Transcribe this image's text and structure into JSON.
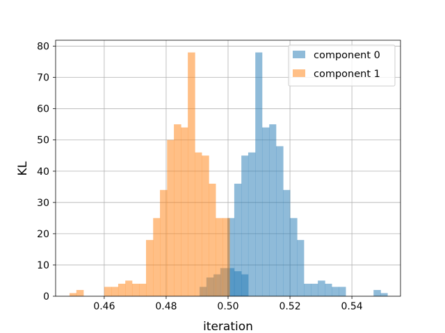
{
  "chart_data": {
    "type": "bar",
    "title": "",
    "xlabel": "iteration",
    "ylabel": "KL",
    "xlim": [
      0.4443,
      0.5557
    ],
    "ylim": [
      0,
      81.9
    ],
    "grid": true,
    "legend_position": "top-right",
    "x_ticks": [
      "0.46",
      "0.48",
      "0.50",
      "0.52",
      "0.54"
    ],
    "x_tick_values": [
      0.46,
      0.48,
      0.5,
      0.52,
      0.54
    ],
    "y_ticks": [
      "0",
      "10",
      "20",
      "30",
      "40",
      "50",
      "60",
      "70",
      "80"
    ],
    "y_tick_values": [
      0,
      10,
      20,
      30,
      40,
      50,
      60,
      70,
      80
    ],
    "series": [
      {
        "name": "component 0",
        "color": "#1f77b4",
        "opacity": 0.5,
        "bins": [
          [
            0.4908,
            0.493,
            3
          ],
          [
            0.493,
            0.4953,
            6
          ],
          [
            0.4953,
            0.4975,
            7
          ],
          [
            0.4975,
            0.4998,
            9
          ],
          [
            0.4998,
            0.502,
            9
          ],
          [
            0.502,
            0.5043,
            8
          ],
          [
            0.5043,
            0.5065,
            7
          ],
          [
            0.4998,
            0.502,
            25
          ],
          [
            0.502,
            0.5043,
            36
          ],
          [
            0.5043,
            0.5065,
            45
          ],
          [
            0.5065,
            0.5088,
            46
          ],
          [
            0.5088,
            0.511,
            78
          ],
          [
            0.511,
            0.5133,
            54
          ],
          [
            0.5133,
            0.5155,
            55
          ],
          [
            0.5155,
            0.5178,
            48
          ],
          [
            0.5178,
            0.52,
            34
          ],
          [
            0.52,
            0.5223,
            25
          ],
          [
            0.5223,
            0.5245,
            18
          ],
          [
            0.5245,
            0.5268,
            4
          ],
          [
            0.5268,
            0.529,
            4
          ],
          [
            0.529,
            0.5313,
            5
          ],
          [
            0.5313,
            0.5335,
            4
          ],
          [
            0.5335,
            0.5358,
            3
          ],
          [
            0.5358,
            0.538,
            3
          ],
          [
            0.547,
            0.5493,
            2
          ],
          [
            0.5493,
            0.5515,
            1
          ]
        ]
      },
      {
        "name": "component 1",
        "color": "#ff7f0e",
        "opacity": 0.5,
        "bins": [
          [
            0.4488,
            0.451,
            1
          ],
          [
            0.451,
            0.4533,
            2
          ],
          [
            0.46,
            0.4623,
            3
          ],
          [
            0.4623,
            0.4645,
            3
          ],
          [
            0.4645,
            0.4668,
            4
          ],
          [
            0.4668,
            0.469,
            5
          ],
          [
            0.469,
            0.4713,
            4
          ],
          [
            0.4713,
            0.4735,
            4
          ],
          [
            0.4735,
            0.4758,
            18
          ],
          [
            0.4758,
            0.478,
            25
          ],
          [
            0.478,
            0.4803,
            34
          ],
          [
            0.4803,
            0.4825,
            50
          ],
          [
            0.4825,
            0.4848,
            55
          ],
          [
            0.4848,
            0.487,
            54
          ],
          [
            0.487,
            0.4893,
            78
          ],
          [
            0.4893,
            0.4915,
            46
          ],
          [
            0.4915,
            0.4938,
            45
          ],
          [
            0.4938,
            0.496,
            36
          ],
          [
            0.496,
            0.4983,
            25
          ],
          [
            0.4983,
            0.5005,
            25
          ]
        ]
      }
    ]
  }
}
